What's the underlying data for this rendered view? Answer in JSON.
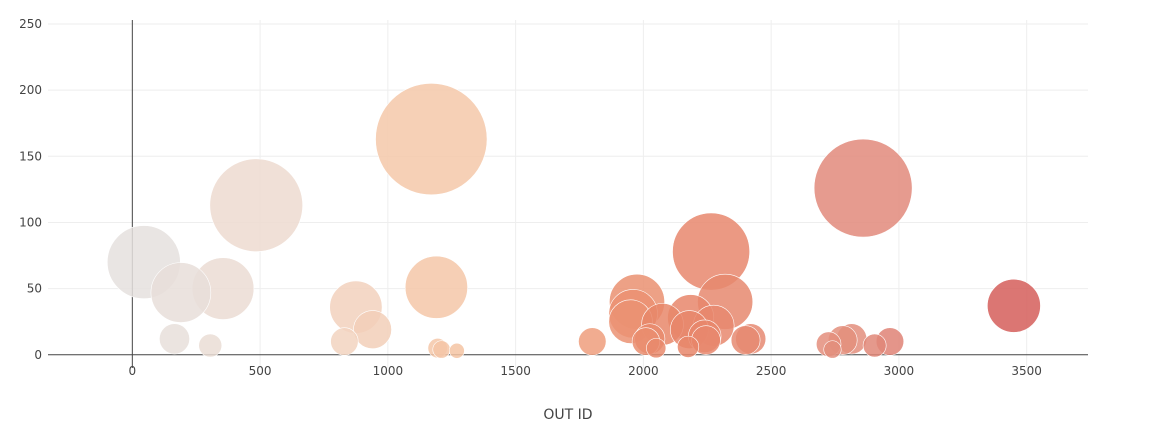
{
  "chart_data": {
    "type": "scatter",
    "title": "",
    "xlabel": "OUT ID",
    "ylabel": "",
    "xlim": [
      -330,
      3740
    ],
    "ylim": [
      -10,
      253
    ],
    "x_ticks": [
      0,
      500,
      1000,
      1500,
      2000,
      2500,
      3000,
      3500
    ],
    "y_ticks": [
      0,
      50,
      100,
      150,
      200,
      250
    ],
    "grid": true,
    "legend": "none",
    "marker": "bubble",
    "size_encodes": "y",
    "color_scale": "x",
    "colors": [
      "#e4e1df",
      "#f1d7c9",
      "#f5c09a",
      "#e88568",
      "#e38f7e",
      "#d45a58"
    ],
    "points": [
      {
        "x": 45,
        "y": 70
      },
      {
        "x": 190,
        "y": 47
      },
      {
        "x": 165,
        "y": 12
      },
      {
        "x": 355,
        "y": 50
      },
      {
        "x": 305,
        "y": 7
      },
      {
        "x": 485,
        "y": 113
      },
      {
        "x": 875,
        "y": 36
      },
      {
        "x": 940,
        "y": 19
      },
      {
        "x": 830,
        "y": 10
      },
      {
        "x": 1170,
        "y": 163
      },
      {
        "x": 1190,
        "y": 51
      },
      {
        "x": 1195,
        "y": 5
      },
      {
        "x": 1210,
        "y": 4
      },
      {
        "x": 1270,
        "y": 3
      },
      {
        "x": 1800,
        "y": 10
      },
      {
        "x": 1975,
        "y": 40
      },
      {
        "x": 1960,
        "y": 31
      },
      {
        "x": 1950,
        "y": 25
      },
      {
        "x": 2025,
        "y": 12
      },
      {
        "x": 2010,
        "y": 10
      },
      {
        "x": 2075,
        "y": 23
      },
      {
        "x": 2185,
        "y": 28
      },
      {
        "x": 2180,
        "y": 19
      },
      {
        "x": 2175,
        "y": 6
      },
      {
        "x": 2265,
        "y": 78
      },
      {
        "x": 2320,
        "y": 40
      },
      {
        "x": 2275,
        "y": 22
      },
      {
        "x": 2240,
        "y": 14
      },
      {
        "x": 2245,
        "y": 11
      },
      {
        "x": 2420,
        "y": 12
      },
      {
        "x": 2400,
        "y": 11
      },
      {
        "x": 2860,
        "y": 126
      },
      {
        "x": 3450,
        "y": 37
      },
      {
        "x": 2815,
        "y": 12
      },
      {
        "x": 2780,
        "y": 11
      },
      {
        "x": 2725,
        "y": 8
      },
      {
        "x": 2905,
        "y": 7
      },
      {
        "x": 2965,
        "y": 10
      },
      {
        "x": 2740,
        "y": 4
      },
      {
        "x": 2050,
        "y": 5
      }
    ]
  }
}
